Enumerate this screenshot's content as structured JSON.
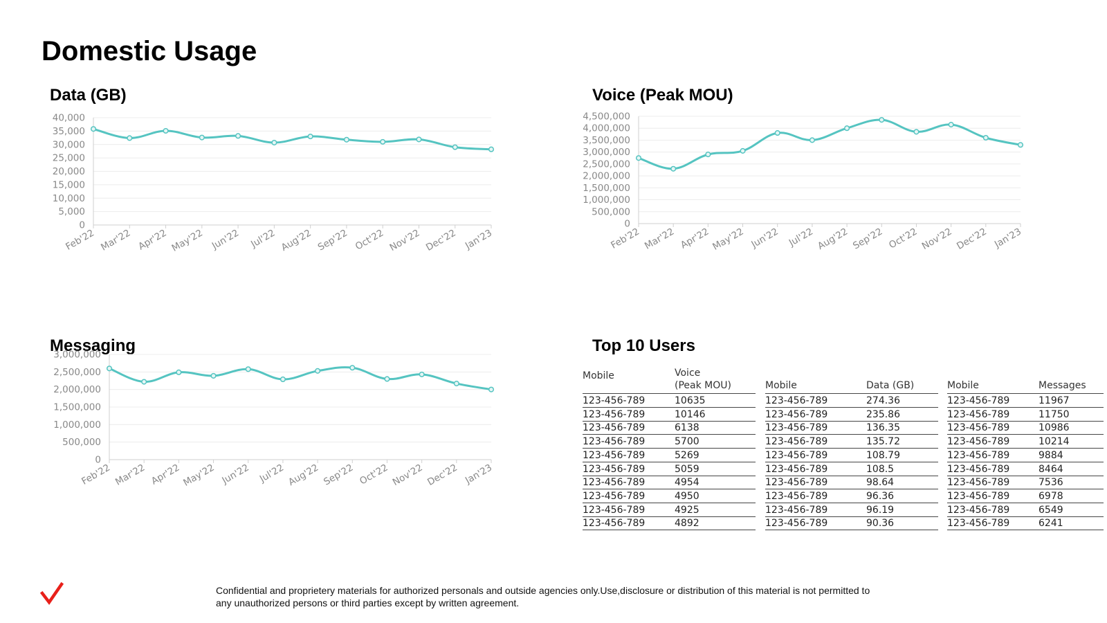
{
  "page_title": "Domestic Usage",
  "footer": "Confidential and proprietery materials for authorized personals and outside agencies only.Use,disclosure or distribution of this material is not permitted to any unauthorized persons or third parties except by written agreement.",
  "logo_icon": "checkmark-icon",
  "colors": {
    "line": "#55c4c1",
    "logo": "#e8201a",
    "grid": "#ececec",
    "axis_text": "#888888"
  },
  "chart_data": [
    {
      "type": "line",
      "title": "Data (GB)",
      "x": [
        "Feb'22",
        "Mar'22",
        "Apr'22",
        "May'22",
        "Jun'22",
        "Jul'22",
        "Aug'22",
        "Sep'22",
        "Oct'22",
        "Nov'22",
        "Dec'22",
        "Jan'23"
      ],
      "y": [
        35800,
        32400,
        35100,
        32600,
        33200,
        30700,
        33000,
        31800,
        31000,
        31900,
        29000,
        28200
      ],
      "yticks": [
        "40,000",
        "35,000",
        "30,000",
        "25,000",
        "20,000",
        "15,000",
        "10,000",
        "5,000",
        "0"
      ],
      "ylim": [
        0,
        40000
      ],
      "grid": true
    },
    {
      "type": "line",
      "title": "Voice (Peak MOU)",
      "x": [
        "Feb'22",
        "Mar'22",
        "Apr'22",
        "May'22",
        "Jun'22",
        "Jul'22",
        "Aug'22",
        "Sep'22",
        "Oct'22",
        "Nov'22",
        "Dec'22",
        "Jan'23"
      ],
      "y": [
        2750000,
        2300000,
        2900000,
        3050000,
        3800000,
        3500000,
        4000000,
        4350000,
        3850000,
        4150000,
        3600000,
        3300000
      ],
      "yticks": [
        "4,500,000",
        "4,000,000",
        "3,500,000",
        "3,000,000",
        "2,500,000",
        "2,000,000",
        "1,500,000",
        "1,000,000",
        "500,000",
        "0"
      ],
      "ylim": [
        0,
        4500000
      ],
      "grid": true
    },
    {
      "type": "line",
      "title": "Messaging",
      "x": [
        "Feb'22",
        "Mar'22",
        "Apr'22",
        "May'22",
        "Jun'22",
        "Jul'22",
        "Aug'22",
        "Sep'22",
        "Oct'22",
        "Nov'22",
        "Dec'22",
        "Jan'23"
      ],
      "y": [
        2600000,
        2220000,
        2490000,
        2390000,
        2580000,
        2290000,
        2530000,
        2620000,
        2300000,
        2430000,
        2170000,
        2000000
      ],
      "yticks": [
        "3,000,000",
        "2,500,000",
        "2,000,000",
        "1,500,000",
        "1,000,000",
        "500,000",
        "0"
      ],
      "ylim": [
        0,
        3000000
      ],
      "grid": true
    },
    {
      "type": "table",
      "title": "Top 10 Users",
      "tables": [
        {
          "headers": [
            [
              "Mobile"
            ],
            [
              "Voice",
              "(Peak MOU)"
            ]
          ],
          "rows": [
            [
              "123-456-789",
              "10635"
            ],
            [
              "123-456-789",
              "10146"
            ],
            [
              "123-456-789",
              "6138"
            ],
            [
              "123-456-789",
              "5700"
            ],
            [
              "123-456-789",
              "5269"
            ],
            [
              "123-456-789",
              "5059"
            ],
            [
              "123-456-789",
              "4954"
            ],
            [
              "123-456-789",
              "4950"
            ],
            [
              "123-456-789",
              "4925"
            ],
            [
              "123-456-789",
              "4892"
            ]
          ]
        },
        {
          "headers": [
            [
              "Mobile"
            ],
            [
              "Data (GB)"
            ]
          ],
          "rows": [
            [
              "123-456-789",
              "274.36"
            ],
            [
              "123-456-789",
              "235.86"
            ],
            [
              "123-456-789",
              "136.35"
            ],
            [
              "123-456-789",
              "135.72"
            ],
            [
              "123-456-789",
              "108.79"
            ],
            [
              "123-456-789",
              "108.5"
            ],
            [
              "123-456-789",
              "98.64"
            ],
            [
              "123-456-789",
              "96.36"
            ],
            [
              "123-456-789",
              "96.19"
            ],
            [
              "123-456-789",
              "90.36"
            ]
          ]
        },
        {
          "headers": [
            [
              "Mobile"
            ],
            [
              "Messages"
            ]
          ],
          "rows": [
            [
              "123-456-789",
              "11967"
            ],
            [
              "123-456-789",
              "11750"
            ],
            [
              "123-456-789",
              "10986"
            ],
            [
              "123-456-789",
              "10214"
            ],
            [
              "123-456-789",
              "9884"
            ],
            [
              "123-456-789",
              "8464"
            ],
            [
              "123-456-789",
              "7536"
            ],
            [
              "123-456-789",
              "6978"
            ],
            [
              "123-456-789",
              "6549"
            ],
            [
              "123-456-789",
              "6241"
            ]
          ]
        }
      ]
    }
  ]
}
